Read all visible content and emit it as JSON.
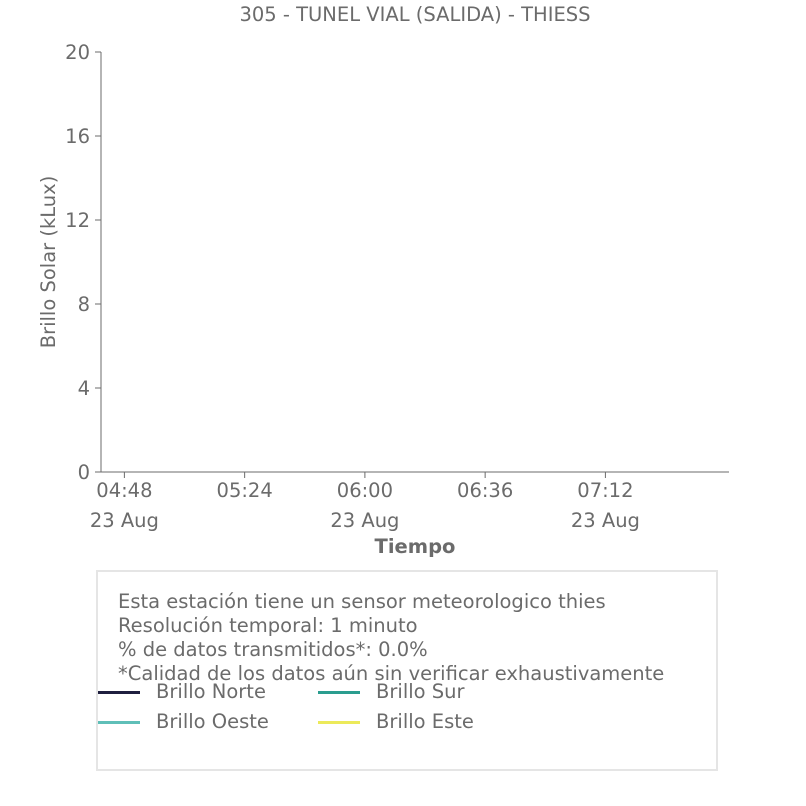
{
  "chart_data": {
    "type": "line",
    "title": "305 - TUNEL VIAL (SALIDA) - THIESS",
    "xlabel": "Tiempo",
    "ylabel": "Brillo Solar (kLux)",
    "ylim": [
      0,
      20
    ],
    "yticks": [
      "0",
      "4",
      "8",
      "12",
      "16",
      "20"
    ],
    "xlim": [
      "04:41",
      "07:49"
    ],
    "xticks": [
      {
        "time": "04:48",
        "date": "23 Aug"
      },
      {
        "time": "05:24",
        "date": ""
      },
      {
        "time": "06:00",
        "date": "23 Aug"
      },
      {
        "time": "06:36",
        "date": ""
      },
      {
        "time": "07:12",
        "date": "23 Aug"
      }
    ],
    "grid": false,
    "series": [
      {
        "name": "Brillo Norte",
        "color": "#1f1f3f",
        "values": []
      },
      {
        "name": "Brillo Sur",
        "color": "#2a9d8f",
        "values": []
      },
      {
        "name": "Brillo Oeste",
        "color": "#5fbfb8",
        "values": []
      },
      {
        "name": "Brillo Este",
        "color": "#ecea5a",
        "values": []
      }
    ]
  },
  "info": {
    "line1": "Esta estación tiene un sensor meteorologico thies",
    "line2": "Resolución temporal: 1 minuto",
    "line3": "% de datos transmitidos*: 0.0%",
    "line4": "*Calidad de los datos aún sin verificar exhaustivamente"
  },
  "legend": [
    {
      "label": "Brillo Norte",
      "color": "#1f1f3f"
    },
    {
      "label": "Brillo Sur",
      "color": "#2a9d8f"
    },
    {
      "label": "Brillo Oeste",
      "color": "#5fbfb8"
    },
    {
      "label": "Brillo Este",
      "color": "#ecea5a"
    }
  ]
}
